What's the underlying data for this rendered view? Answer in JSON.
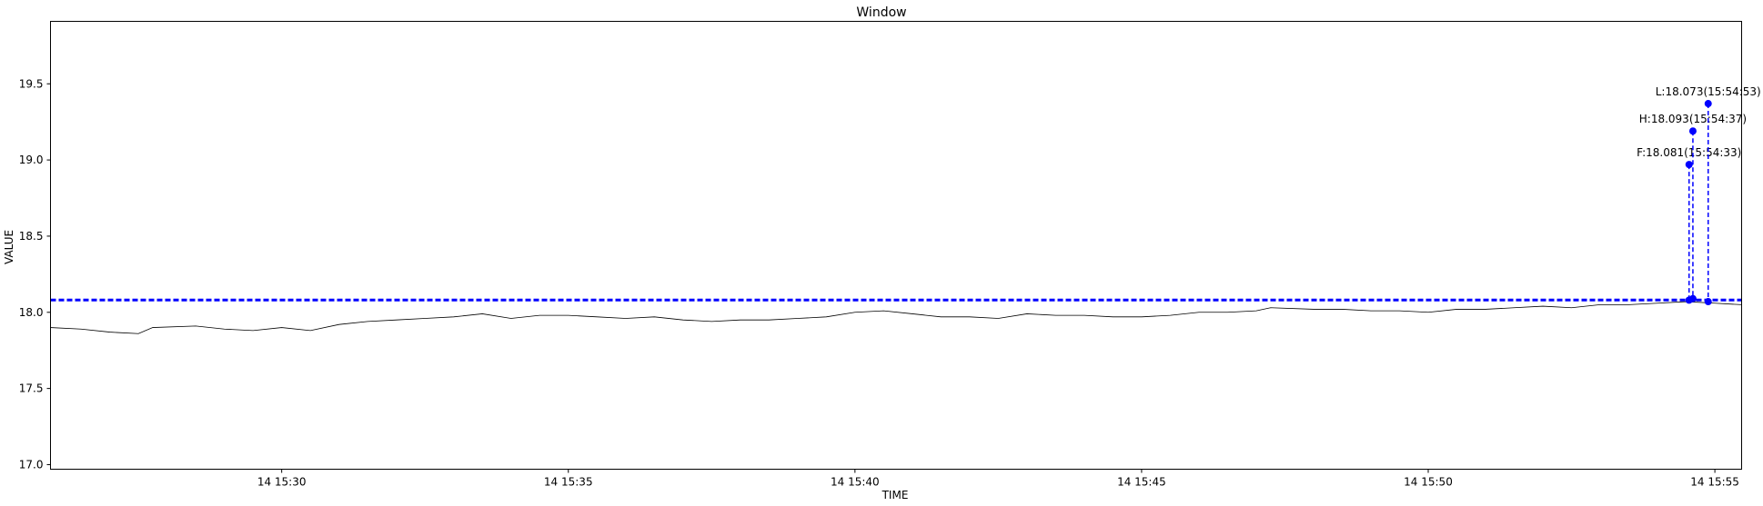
{
  "chart_data": {
    "type": "line",
    "title": "Window",
    "xlabel": "TIME",
    "ylabel": "VALUE",
    "xlim": [
      "2024-01-14 15:25:58",
      "2024-01-14 15:55:28"
    ],
    "ylim": [
      16.97,
      19.91
    ],
    "x_ticks": [
      {
        "t": "2024-01-14 15:30:00",
        "label": "14 15:30"
      },
      {
        "t": "2024-01-14 15:35:00",
        "label": "14 15:35"
      },
      {
        "t": "2024-01-14 15:40:00",
        "label": "14 15:40"
      },
      {
        "t": "2024-01-14 15:45:00",
        "label": "14 15:45"
      },
      {
        "t": "2024-01-14 15:50:00",
        "label": "14 15:50"
      },
      {
        "t": "2024-01-14 15:55:00",
        "label": "14 15:55"
      }
    ],
    "y_ticks": [
      17.0,
      17.5,
      18.0,
      18.5,
      19.0,
      19.5
    ],
    "y_tick_labels": [
      "17.0",
      "17.5",
      "18.0",
      "18.5",
      "19.0",
      "19.5"
    ],
    "grid": false,
    "series": [
      {
        "color": "#000000",
        "style": "solid",
        "points": [
          [
            "2024-01-14 15:25:58",
            17.9
          ],
          [
            "2024-01-14 15:26:30",
            17.89
          ],
          [
            "2024-01-14 15:27:00",
            17.87
          ],
          [
            "2024-01-14 15:27:30",
            17.86
          ],
          [
            "2024-01-14 15:27:45",
            17.9
          ],
          [
            "2024-01-14 15:28:30",
            17.91
          ],
          [
            "2024-01-14 15:29:00",
            17.89
          ],
          [
            "2024-01-14 15:29:30",
            17.88
          ],
          [
            "2024-01-14 15:30:00",
            17.9
          ],
          [
            "2024-01-14 15:30:30",
            17.88
          ],
          [
            "2024-01-14 15:31:00",
            17.92
          ],
          [
            "2024-01-14 15:31:30",
            17.94
          ],
          [
            "2024-01-14 15:32:00",
            17.95
          ],
          [
            "2024-01-14 15:32:30",
            17.96
          ],
          [
            "2024-01-14 15:33:00",
            17.97
          ],
          [
            "2024-01-14 15:33:30",
            17.99
          ],
          [
            "2024-01-14 15:34:00",
            17.96
          ],
          [
            "2024-01-14 15:34:30",
            17.98
          ],
          [
            "2024-01-14 15:35:00",
            17.98
          ],
          [
            "2024-01-14 15:35:30",
            17.97
          ],
          [
            "2024-01-14 15:36:00",
            17.96
          ],
          [
            "2024-01-14 15:36:30",
            17.97
          ],
          [
            "2024-01-14 15:37:00",
            17.95
          ],
          [
            "2024-01-14 15:37:30",
            17.94
          ],
          [
            "2024-01-14 15:38:00",
            17.95
          ],
          [
            "2024-01-14 15:38:30",
            17.95
          ],
          [
            "2024-01-14 15:39:00",
            17.96
          ],
          [
            "2024-01-14 15:39:30",
            17.97
          ],
          [
            "2024-01-14 15:40:00",
            18.0
          ],
          [
            "2024-01-14 15:40:30",
            18.01
          ],
          [
            "2024-01-14 15:41:00",
            17.99
          ],
          [
            "2024-01-14 15:41:30",
            17.97
          ],
          [
            "2024-01-14 15:42:00",
            17.97
          ],
          [
            "2024-01-14 15:42:30",
            17.96
          ],
          [
            "2024-01-14 15:43:00",
            17.99
          ],
          [
            "2024-01-14 15:43:30",
            17.98
          ],
          [
            "2024-01-14 15:44:00",
            17.98
          ],
          [
            "2024-01-14 15:44:30",
            17.97
          ],
          [
            "2024-01-14 15:45:00",
            17.97
          ],
          [
            "2024-01-14 15:45:30",
            17.98
          ],
          [
            "2024-01-14 15:46:00",
            18.0
          ],
          [
            "2024-01-14 15:46:30",
            18.0
          ],
          [
            "2024-01-14 15:47:00",
            18.01
          ],
          [
            "2024-01-14 15:47:15",
            18.03
          ],
          [
            "2024-01-14 15:48:00",
            18.02
          ],
          [
            "2024-01-14 15:48:30",
            18.02
          ],
          [
            "2024-01-14 15:49:00",
            18.01
          ],
          [
            "2024-01-14 15:49:30",
            18.01
          ],
          [
            "2024-01-14 15:50:00",
            18.0
          ],
          [
            "2024-01-14 15:50:30",
            18.02
          ],
          [
            "2024-01-14 15:51:00",
            18.02
          ],
          [
            "2024-01-14 15:51:30",
            18.03
          ],
          [
            "2024-01-14 15:52:00",
            18.04
          ],
          [
            "2024-01-14 15:52:30",
            18.03
          ],
          [
            "2024-01-14 15:53:00",
            18.05
          ],
          [
            "2024-01-14 15:53:30",
            18.05
          ],
          [
            "2024-01-14 15:54:00",
            18.06
          ],
          [
            "2024-01-14 15:54:30",
            18.07
          ],
          [
            "2024-01-14 15:55:00",
            18.06
          ],
          [
            "2024-01-14 15:55:28",
            18.05
          ]
        ]
      }
    ],
    "reference_line": {
      "y": 18.081,
      "color": "#0000ff",
      "style": "dashed"
    },
    "markers": [
      {
        "label": "F:18.081(15:54:33)",
        "t": "2024-01-14 15:54:33",
        "y_top": 18.97,
        "y_base": 18.08,
        "color": "#0000ff"
      },
      {
        "label": "H:18.093(15:54:37)",
        "t": "2024-01-14 15:54:37",
        "y_top": 19.19,
        "y_base": 18.09,
        "color": "#0000ff"
      },
      {
        "label": "L:18.073(15:54:53)",
        "t": "2024-01-14 15:54:53",
        "y_top": 19.37,
        "y_base": 18.07,
        "color": "#0000ff"
      }
    ]
  }
}
